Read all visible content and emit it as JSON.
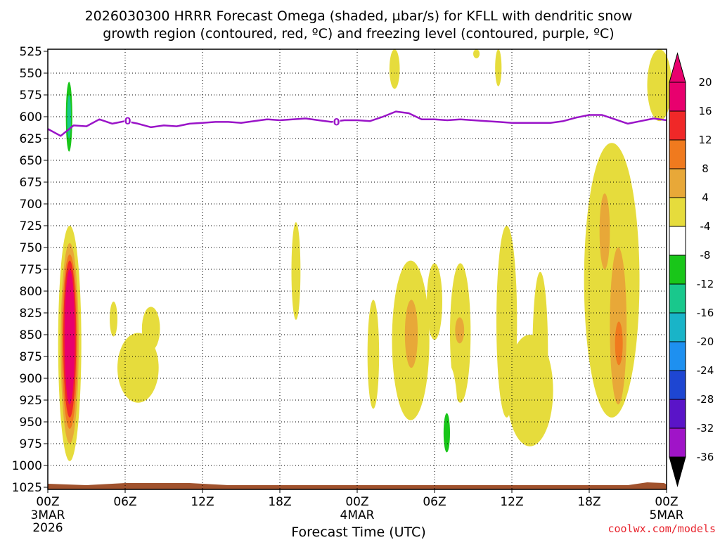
{
  "chart_data": {
    "type": "time-height contour",
    "title_line1": "2026030300 HRRR Forecast Omega (shaded, µbar/s) for KFLL with dendritic snow",
    "title_line2": "growth region (contoured, red, ºC) and freezing level (contoured, purple, ºC)",
    "xlabel": "Forecast Time (UTC)",
    "credit": "coolwx.com/models",
    "x_range_hours": [
      0,
      48
    ],
    "y_range_hpa": [
      525,
      1025
    ],
    "y_ticks": [
      "525",
      "550",
      "575",
      "600",
      "625",
      "650",
      "675",
      "700",
      "725",
      "750",
      "775",
      "800",
      "825",
      "850",
      "875",
      "900",
      "925",
      "950",
      "975",
      "1000",
      "1025"
    ],
    "x_ticks": [
      {
        "hour": 0,
        "label": "00Z",
        "sub1": "3MAR",
        "sub2": "2026"
      },
      {
        "hour": 6,
        "label": "06Z"
      },
      {
        "hour": 12,
        "label": "12Z"
      },
      {
        "hour": 18,
        "label": "18Z"
      },
      {
        "hour": 24,
        "label": "00Z",
        "sub1": "4MAR"
      },
      {
        "hour": 30,
        "label": "06Z"
      },
      {
        "hour": 36,
        "label": "12Z"
      },
      {
        "hour": 42,
        "label": "18Z"
      },
      {
        "hour": 48,
        "label": "00Z",
        "sub1": "5MAR"
      }
    ],
    "colorbar": {
      "labels": [
        "20",
        "16",
        "12",
        "8",
        "4",
        "-4",
        "-8",
        "-12",
        "-16",
        "-20",
        "-24",
        "-28",
        "-32",
        "-36"
      ],
      "bins": [
        "#e8006e",
        "#f02828",
        "#f07a1e",
        "#e8a838",
        "#e6dc3c",
        "#ffffff",
        "#19c619",
        "#19c88c",
        "#19b4c8",
        "#1e90f0",
        "#1e46d2",
        "#5a14c8",
        "#a014c8",
        "#a8a8a8"
      ],
      "under_color": "#000000",
      "over_color": "#e8006e"
    },
    "freezing_level": {
      "label": "0",
      "label_hours": [
        6.2,
        22.4
      ],
      "hours": [
        0,
        1,
        2,
        3,
        4,
        5,
        6,
        7,
        8,
        9,
        10,
        11,
        12,
        13,
        14,
        15,
        16,
        17,
        18,
        19,
        20,
        21,
        22,
        23,
        24,
        25,
        26,
        27,
        28,
        29,
        30,
        31,
        32,
        33,
        34,
        35,
        36,
        37,
        38,
        39,
        40,
        41,
        42,
        43,
        44,
        45,
        46,
        47,
        48
      ],
      "pressure_hpa": [
        614,
        622,
        610,
        611,
        603,
        608,
        605,
        608,
        612,
        610,
        611,
        608,
        607,
        606,
        606,
        607,
        605,
        603,
        604,
        603,
        602,
        604,
        606,
        604,
        604,
        605,
        600,
        594,
        596,
        603,
        603,
        604,
        603,
        604,
        605,
        606,
        607,
        607,
        607,
        607,
        605,
        601,
        598,
        598,
        603,
        608,
        605,
        602,
        604
      ]
    },
    "omega_regions": [
      {
        "level": 4,
        "t0": 0.8,
        "t1": 2.6,
        "p0": 725,
        "p1": 995
      },
      {
        "level": 8,
        "t0": 1.0,
        "t1": 2.4,
        "p0": 745,
        "p1": 975
      },
      {
        "level": 12,
        "t0": 1.1,
        "t1": 2.3,
        "p0": 758,
        "p1": 958
      },
      {
        "level": 16,
        "t0": 1.2,
        "t1": 2.2,
        "p0": 765,
        "p1": 945
      },
      {
        "level": 20,
        "t0": 1.3,
        "t1": 2.1,
        "p0": 775,
        "p1": 930
      },
      {
        "level": -4,
        "t0": 1.1,
        "t1": 2.3,
        "p0": 525,
        "p1": 695
      },
      {
        "level": -8,
        "t0": 1.4,
        "t1": 1.9,
        "p0": 560,
        "p1": 640
      },
      {
        "level": -12,
        "t0": 1.5,
        "t1": 1.8,
        "p0": 575,
        "p1": 625
      },
      {
        "level": -4,
        "t0": 3.0,
        "t1": 3.6,
        "p0": 836,
        "p1": 968
      },
      {
        "level": 4,
        "t0": 5.4,
        "t1": 8.6,
        "p0": 848,
        "p1": 928
      },
      {
        "level": 4,
        "t0": 7.3,
        "t1": 8.7,
        "p0": 818,
        "p1": 868
      },
      {
        "level": 4,
        "t0": 4.8,
        "t1": 5.4,
        "p0": 812,
        "p1": 852
      },
      {
        "level": -4,
        "t0": 4.8,
        "t1": 6.6,
        "p0": 945,
        "p1": 1005
      },
      {
        "level": -4,
        "t0": 10.6,
        "t1": 12.1,
        "p0": 928,
        "p1": 1008
      },
      {
        "level": -4,
        "t0": 13.0,
        "t1": 16.2,
        "p0": 865,
        "p1": 1002
      },
      {
        "level": -4,
        "t0": 16.7,
        "t1": 17.4,
        "p0": 882,
        "p1": 917
      },
      {
        "level": 4,
        "t0": 18.9,
        "t1": 19.6,
        "p0": 721,
        "p1": 833
      },
      {
        "level": -4,
        "t0": 19.1,
        "t1": 19.4,
        "p0": 522,
        "p1": 533
      },
      {
        "level": 4,
        "t0": 26.5,
        "t1": 27.3,
        "p0": 512,
        "p1": 568
      },
      {
        "level": 4,
        "t0": 33.0,
        "t1": 33.5,
        "p0": 512,
        "p1": 533
      },
      {
        "level": 4,
        "t0": 34.7,
        "t1": 35.2,
        "p0": 512,
        "p1": 565
      },
      {
        "level": 4,
        "t0": 24.8,
        "t1": 25.7,
        "p0": 810,
        "p1": 935
      },
      {
        "level": 4,
        "t0": 26.7,
        "t1": 29.6,
        "p0": 765,
        "p1": 948
      },
      {
        "level": 8,
        "t0": 27.7,
        "t1": 28.7,
        "p0": 810,
        "p1": 888
      },
      {
        "level": 4,
        "t0": 29.4,
        "t1": 30.6,
        "p0": 768,
        "p1": 856
      },
      {
        "level": 4,
        "t0": 31.2,
        "t1": 32.8,
        "p0": 768,
        "p1": 928
      },
      {
        "level": 8,
        "t0": 31.6,
        "t1": 32.3,
        "p0": 830,
        "p1": 860
      },
      {
        "level": -4,
        "t0": 29.2,
        "t1": 32.4,
        "p0": 940,
        "p1": 1012
      },
      {
        "level": -4,
        "t0": 30.4,
        "t1": 31.8,
        "p0": 885,
        "p1": 1010
      },
      {
        "level": -8,
        "t0": 30.7,
        "t1": 31.2,
        "p0": 940,
        "p1": 985
      },
      {
        "level": 4,
        "t0": 34.8,
        "t1": 36.4,
        "p0": 725,
        "p1": 945
      },
      {
        "level": 4,
        "t0": 35.6,
        "t1": 39.2,
        "p0": 850,
        "p1": 978
      },
      {
        "level": 4,
        "t0": 37.6,
        "t1": 38.8,
        "p0": 778,
        "p1": 965
      },
      {
        "level": -4,
        "t0": 39.7,
        "t1": 42.6,
        "p0": 728,
        "p1": 870
      },
      {
        "level": -4,
        "t0": 42.0,
        "t1": 43.0,
        "p0": 840,
        "p1": 952
      },
      {
        "level": -4,
        "t0": 40.6,
        "t1": 41.1,
        "p0": 562,
        "p1": 630
      },
      {
        "level": -4,
        "t0": 43.2,
        "t1": 44.1,
        "p0": 551,
        "p1": 630
      },
      {
        "level": -4,
        "t0": 43.1,
        "t1": 43.8,
        "p0": 950,
        "p1": 975
      },
      {
        "level": 4,
        "t0": 41.6,
        "t1": 45.9,
        "p0": 630,
        "p1": 945
      },
      {
        "level": 8,
        "t0": 42.8,
        "t1": 43.6,
        "p0": 688,
        "p1": 775
      },
      {
        "level": 8,
        "t0": 43.6,
        "t1": 44.9,
        "p0": 750,
        "p1": 930
      },
      {
        "level": 12,
        "t0": 44.0,
        "t1": 44.6,
        "p0": 835,
        "p1": 885
      },
      {
        "level": 4,
        "t0": 46.5,
        "t1": 48.4,
        "p0": 510,
        "p1": 605
      },
      {
        "level": -4,
        "t0": 47.5,
        "t1": 48.2,
        "p0": 950,
        "p1": 1005
      }
    ],
    "surface_fill_color": "#a0522d"
  }
}
